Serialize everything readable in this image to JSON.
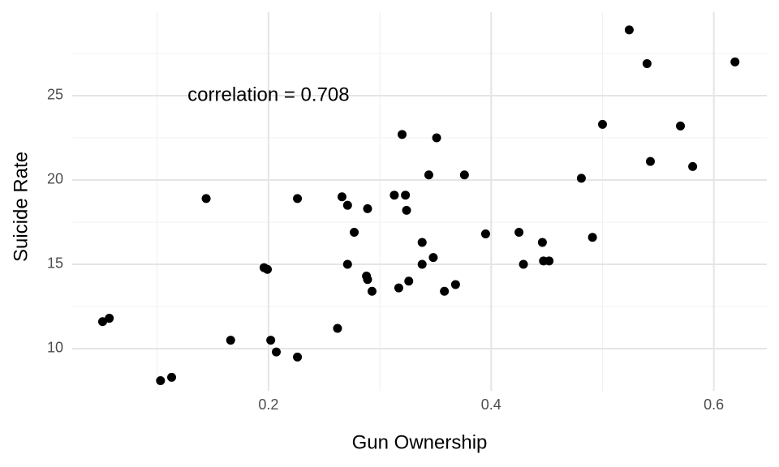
{
  "chart_data": {
    "type": "scatter",
    "x_label": "Gun Ownership",
    "y_label": "Suicide Rate",
    "xlim": [
      0.0237,
      0.6476
    ],
    "ylim": [
      7.5,
      29.95
    ],
    "xticks": [
      0.2,
      0.4,
      0.6
    ],
    "yticks": [
      10,
      15,
      20,
      25
    ],
    "x_minor_grid": [
      0.1,
      0.3,
      0.5
    ],
    "y_minor_grid": [
      12.5,
      17.5,
      22.5,
      27.5
    ],
    "grid": true,
    "color": "#000000",
    "annotation": {
      "text": "correlation = 0.708",
      "x": 0.2,
      "y": 25
    },
    "x": [
      0.524,
      0.54,
      0.619,
      0.5,
      0.57,
      0.543,
      0.581,
      0.481,
      0.32,
      0.351,
      0.344,
      0.376,
      0.144,
      0.226,
      0.266,
      0.313,
      0.323,
      0.271,
      0.289,
      0.324,
      0.277,
      0.395,
      0.425,
      0.491,
      0.338,
      0.446,
      0.196,
      0.199,
      0.271,
      0.348,
      0.338,
      0.429,
      0.447,
      0.452,
      0.288,
      0.289,
      0.326,
      0.293,
      0.317,
      0.358,
      0.368,
      0.051,
      0.057,
      0.262,
      0.166,
      0.202,
      0.207,
      0.226,
      0.103,
      0.113
    ],
    "y": [
      28.9,
      26.9,
      27.0,
      23.3,
      23.2,
      21.1,
      20.8,
      20.1,
      22.7,
      22.5,
      20.3,
      20.3,
      18.9,
      18.9,
      19.0,
      19.1,
      19.1,
      18.5,
      18.3,
      18.2,
      16.9,
      16.8,
      16.9,
      16.6,
      16.3,
      16.3,
      14.8,
      14.7,
      15.0,
      15.4,
      15.0,
      15.0,
      15.2,
      15.2,
      14.3,
      14.1,
      14.0,
      13.4,
      13.6,
      13.4,
      13.8,
      11.6,
      11.8,
      11.2,
      10.5,
      10.5,
      9.8,
      9.5,
      8.1,
      8.3
    ]
  }
}
